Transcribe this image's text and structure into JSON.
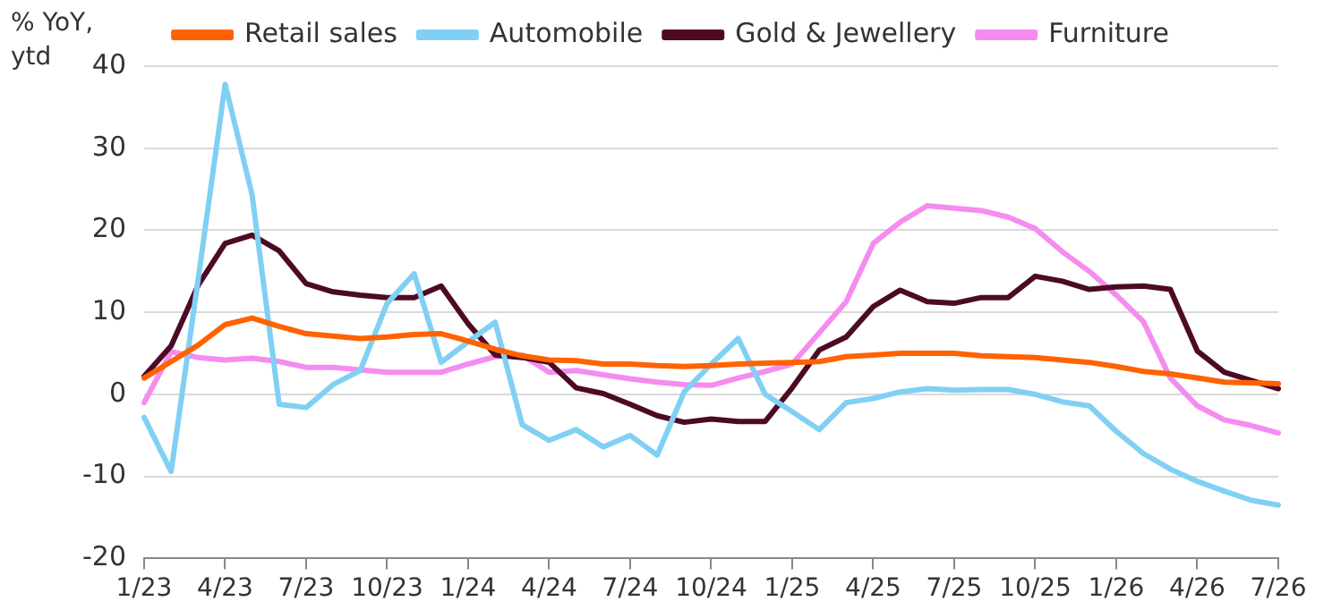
{
  "chart_data": {
    "type": "line",
    "ylabel": "% YoY, ytd",
    "categories": [
      "1/23",
      null,
      null,
      "4/23",
      null,
      null,
      "7/23",
      null,
      null,
      "10/23",
      null,
      null,
      "1/24",
      null,
      null,
      "4/24",
      null,
      null,
      "7/24",
      null,
      null,
      "10/24",
      null,
      null,
      "1/25",
      null,
      null,
      "4/25",
      null,
      null,
      "7/25",
      null,
      null,
      "10/25",
      null,
      null,
      "1/26",
      null,
      null,
      "4/26",
      null,
      null,
      "7/26"
    ],
    "series": [
      {
        "name": "Retail sales",
        "color": "#ff6200",
        "values": [
          2,
          4,
          6,
          8.5,
          9.3,
          8.3,
          7.4,
          7.1,
          6.8,
          7,
          7.3,
          7.4,
          6.5,
          5.5,
          4.7,
          4.2,
          4.1,
          3.7,
          3.7,
          3.5,
          3.4,
          3.5,
          3.7,
          3.8,
          3.9,
          4,
          4.6,
          4.8,
          5,
          5,
          5,
          4.7,
          4.6,
          4.5,
          4.2,
          3.9,
          3.4,
          2.8,
          2.5,
          2,
          1.5,
          1.4,
          1.3
        ]
      },
      {
        "name": "Automobile",
        "color": "#80d0f4",
        "values": [
          -2.8,
          -9.4,
          14,
          37.8,
          24.3,
          -1.2,
          -1.6,
          1.2,
          2.9,
          11.1,
          14.7,
          3.9,
          6.4,
          8.8,
          -3.7,
          -5.6,
          -4.3,
          -6.4,
          -5,
          -7.4,
          0.3,
          3.7,
          6.8,
          0,
          -2.1,
          -4.3,
          -1,
          -0.5,
          0.3,
          0.7,
          0.5,
          0.6,
          0.6,
          0,
          -0.9,
          -1.4,
          -4.5,
          -7.2,
          -9.1,
          -10.6,
          -11.8,
          -12.9,
          -13.5
        ]
      },
      {
        "name": "Gold & Jewellery",
        "color": "#4c0a24",
        "values": [
          2.2,
          5.9,
          13.3,
          18.4,
          19.4,
          17.5,
          13.5,
          12.5,
          12.1,
          11.8,
          11.8,
          13.2,
          8.6,
          4.8,
          4.5,
          3.9,
          0.8,
          0.1,
          -1.2,
          -2.6,
          -3.4,
          -3,
          -3.3,
          -3.3,
          0.8,
          5.4,
          7,
          10.7,
          12.7,
          11.3,
          11.1,
          11.8,
          11.8,
          14.4,
          13.8,
          12.8,
          13.1,
          13.2,
          12.8,
          5.3,
          2.7,
          1.7,
          0.7
        ]
      },
      {
        "name": "Furniture",
        "color": "#f58cf0",
        "values": [
          -1,
          5.2,
          4.5,
          4.2,
          4.4,
          4,
          3.3,
          3.3,
          3,
          2.7,
          2.7,
          2.7,
          3.7,
          4.6,
          4.8,
          2.7,
          2.9,
          2.4,
          1.9,
          1.5,
          1.2,
          1.1,
          2,
          2.8,
          3.7,
          7.5,
          11.3,
          18.4,
          21,
          23,
          22.7,
          22.4,
          21.6,
          20.2,
          17.4,
          15,
          12.1,
          8.9,
          2,
          -1.4,
          -3.1,
          -3.8,
          -4.7
        ]
      }
    ],
    "ylim": [
      -20,
      40
    ],
    "yticks": [
      -20,
      -10,
      0,
      10,
      20,
      30,
      40
    ],
    "grid": "y",
    "legend": "top",
    "marker": "none",
    "line_style": "solid"
  }
}
